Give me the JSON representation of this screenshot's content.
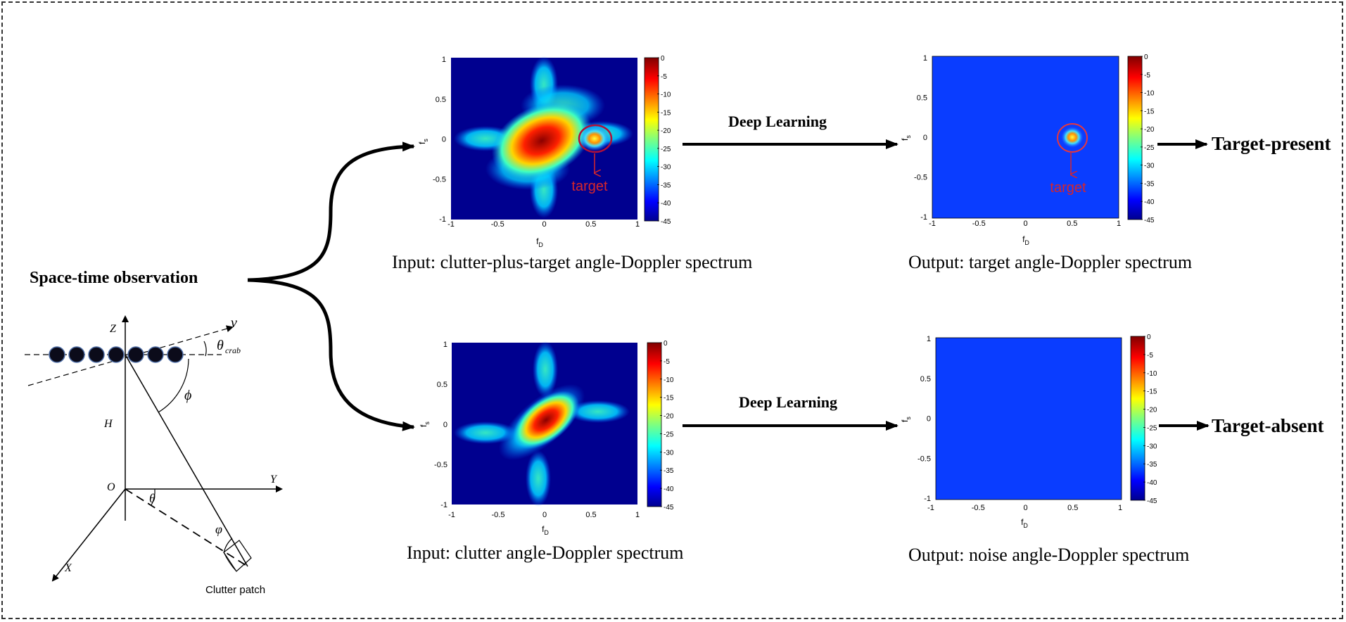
{
  "observation_label": "Space-time observation",
  "geometry": {
    "axis_z": "Z",
    "axis_y": "Y",
    "axis_x": "X",
    "origin": "O",
    "height": "H",
    "velocity": "v",
    "crab_angle": "θ",
    "crab_sub": "crab",
    "phi_upper": "ϕ",
    "theta": "θ",
    "phi_lower": "φ",
    "clutter_patch": "Clutter patch"
  },
  "deep_learning_label": "Deep Learning",
  "panels": [
    {
      "id": "input-clutter-plus-target",
      "caption": "Input: clutter-plus-target angle-Doppler spectrum",
      "target_label": "target",
      "x_axis_label": "f",
      "x_axis_sub": "D",
      "y_axis_label": "f",
      "y_axis_sub": "s"
    },
    {
      "id": "output-target",
      "caption": "Output: target angle-Doppler spectrum",
      "target_label": "target",
      "x_axis_label": "f",
      "x_axis_sub": "D",
      "y_axis_label": "f",
      "y_axis_sub": "s"
    },
    {
      "id": "input-clutter",
      "caption": "Input: clutter angle-Doppler spectrum",
      "x_axis_label": "f",
      "x_axis_sub": "D",
      "y_axis_label": "f",
      "y_axis_sub": "s"
    },
    {
      "id": "output-noise",
      "caption": "Output: noise angle-Doppler spectrum",
      "x_axis_label": "f",
      "x_axis_sub": "D",
      "y_axis_label": "f",
      "y_axis_sub": "s"
    }
  ],
  "axis_ticks": {
    "x": [
      "-1",
      "-0.5",
      "0",
      "0.5",
      "1"
    ],
    "y": [
      "1",
      "0.5",
      "0",
      "-0.5",
      "-1"
    ]
  },
  "colorbar_ticks": [
    "0",
    "-5",
    "-10",
    "-15",
    "-20",
    "-25",
    "-30",
    "-35",
    "-40",
    "-45"
  ],
  "results": {
    "present": "Target-present",
    "absent": "Target-absent"
  },
  "colors": {
    "jet_dark_blue": "#00008f",
    "background_blue": "#0a3dff",
    "annotation_red": "#d6262b",
    "arrow": "#000000"
  }
}
